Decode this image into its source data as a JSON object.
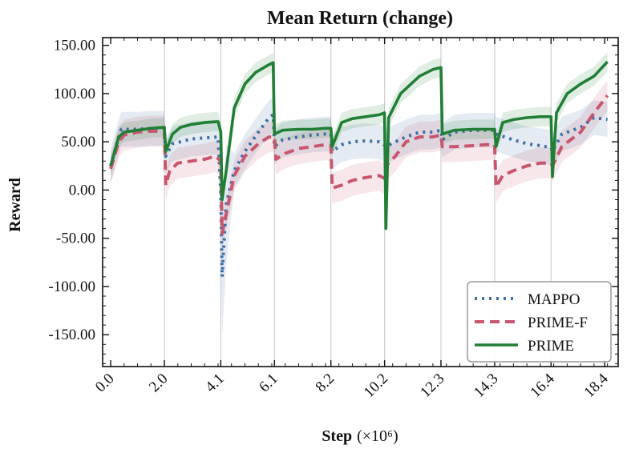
{
  "chart_data": {
    "type": "line",
    "title": "Mean Return (change)",
    "xlabel": "Step",
    "xlabel_suffix": "(×10⁶)",
    "ylabel": "Reward",
    "xlim": [
      -0.3,
      18.9
    ],
    "ylim": [
      -183,
      158
    ],
    "xticks": [
      0.0,
      2.0,
      4.1,
      6.1,
      8.2,
      10.2,
      12.3,
      14.3,
      16.4,
      18.4
    ],
    "xtick_labels": [
      "0.0",
      "2.0",
      "4.1",
      "6.1",
      "8.2",
      "10.2",
      "12.3",
      "14.3",
      "16.4",
      "18.4"
    ],
    "yticks": [
      150,
      100,
      50,
      0,
      -50,
      -100,
      -150
    ],
    "ytick_labels": [
      "150.00",
      "100.00",
      "50.00",
      "0.00",
      "-50.00",
      "-100.00",
      "-150.00"
    ],
    "vlines": [
      2.0,
      4.1,
      6.1,
      8.2,
      10.2,
      12.3,
      14.3,
      16.4
    ],
    "legend_position": "bottom-right",
    "grid": false,
    "series": [
      {
        "name": "MAPPO",
        "color": "#3f6fa5",
        "style": "dotted",
        "band_width": 18,
        "points": [
          [
            0,
            25
          ],
          [
            0.3,
            55
          ],
          [
            0.4,
            63
          ],
          [
            1.0,
            63
          ],
          [
            1.5,
            64
          ],
          [
            2.0,
            64
          ],
          [
            2.05,
            35
          ],
          [
            2.3,
            48
          ],
          [
            2.6,
            50
          ],
          [
            3.0,
            53
          ],
          [
            3.5,
            54
          ],
          [
            4.0,
            55
          ],
          [
            4.1,
            -5
          ],
          [
            4.15,
            -90
          ],
          [
            4.3,
            -15
          ],
          [
            4.6,
            20
          ],
          [
            5.0,
            40
          ],
          [
            5.5,
            60
          ],
          [
            5.9,
            75
          ],
          [
            6.05,
            78
          ],
          [
            6.1,
            45
          ],
          [
            6.4,
            52
          ],
          [
            7.0,
            55
          ],
          [
            7.5,
            57
          ],
          [
            8.0,
            58
          ],
          [
            8.2,
            58
          ],
          [
            8.25,
            40
          ],
          [
            8.6,
            47
          ],
          [
            9.0,
            50
          ],
          [
            9.5,
            51
          ],
          [
            10.0,
            50
          ],
          [
            10.15,
            48
          ],
          [
            10.25,
            45
          ],
          [
            10.6,
            50
          ],
          [
            11.0,
            55
          ],
          [
            11.5,
            60
          ],
          [
            12.0,
            60
          ],
          [
            12.3,
            62
          ],
          [
            12.35,
            52
          ],
          [
            12.8,
            60
          ],
          [
            13.5,
            62
          ],
          [
            14.0,
            62
          ],
          [
            14.3,
            62
          ],
          [
            14.35,
            58
          ],
          [
            15.0,
            52
          ],
          [
            15.5,
            48
          ],
          [
            16.0,
            46
          ],
          [
            16.4,
            44
          ],
          [
            16.45,
            40
          ],
          [
            16.8,
            58
          ],
          [
            17.5,
            65
          ],
          [
            18.0,
            75
          ],
          [
            18.5,
            73
          ]
        ]
      },
      {
        "name": "PRIME-F",
        "color": "#c8566e",
        "style": "dashed",
        "band_width": 16,
        "points": [
          [
            0,
            22
          ],
          [
            0.3,
            50
          ],
          [
            0.5,
            57
          ],
          [
            1.0,
            60
          ],
          [
            1.5,
            61
          ],
          [
            2.0,
            61
          ],
          [
            2.05,
            5
          ],
          [
            2.2,
            20
          ],
          [
            2.5,
            28
          ],
          [
            3.0,
            30
          ],
          [
            3.5,
            32
          ],
          [
            3.9,
            35
          ],
          [
            4.1,
            30
          ],
          [
            4.15,
            -45
          ],
          [
            4.3,
            -25
          ],
          [
            4.6,
            15
          ],
          [
            5.0,
            35
          ],
          [
            5.5,
            48
          ],
          [
            5.9,
            55
          ],
          [
            6.1,
            55
          ],
          [
            6.15,
            32
          ],
          [
            6.5,
            38
          ],
          [
            7.0,
            43
          ],
          [
            7.5,
            45
          ],
          [
            8.0,
            47
          ],
          [
            8.2,
            46
          ],
          [
            8.25,
            2
          ],
          [
            8.6,
            5
          ],
          [
            9.0,
            10
          ],
          [
            9.5,
            13
          ],
          [
            10.0,
            15
          ],
          [
            10.2,
            12
          ],
          [
            10.25,
            25
          ],
          [
            10.6,
            35
          ],
          [
            11.0,
            50
          ],
          [
            11.5,
            55
          ],
          [
            12.0,
            55
          ],
          [
            12.3,
            57
          ],
          [
            12.35,
            45
          ],
          [
            12.8,
            45
          ],
          [
            13.5,
            46
          ],
          [
            14.0,
            47
          ],
          [
            14.3,
            47
          ],
          [
            14.35,
            3
          ],
          [
            14.6,
            15
          ],
          [
            15.0,
            20
          ],
          [
            15.5,
            25
          ],
          [
            16.0,
            28
          ],
          [
            16.4,
            28
          ],
          [
            16.45,
            25
          ],
          [
            16.8,
            45
          ],
          [
            17.5,
            60
          ],
          [
            18.0,
            80
          ],
          [
            18.5,
            98
          ]
        ]
      },
      {
        "name": "PRIME",
        "color": "#217f35",
        "style": "solid",
        "band_width": 10,
        "points": [
          [
            0,
            25
          ],
          [
            0.3,
            55
          ],
          [
            0.5,
            60
          ],
          [
            1.0,
            62
          ],
          [
            1.5,
            64
          ],
          [
            2.0,
            65
          ],
          [
            2.05,
            40
          ],
          [
            2.3,
            58
          ],
          [
            2.6,
            65
          ],
          [
            3.0,
            68
          ],
          [
            3.5,
            70
          ],
          [
            4.0,
            71
          ],
          [
            4.1,
            60
          ],
          [
            4.15,
            -10
          ],
          [
            4.3,
            20
          ],
          [
            4.6,
            85
          ],
          [
            5.0,
            110
          ],
          [
            5.4,
            122
          ],
          [
            5.9,
            130
          ],
          [
            6.05,
            132
          ],
          [
            6.1,
            58
          ],
          [
            6.4,
            62
          ],
          [
            7.0,
            63
          ],
          [
            7.5,
            63
          ],
          [
            8.0,
            64
          ],
          [
            8.2,
            64
          ],
          [
            8.25,
            45
          ],
          [
            8.6,
            70
          ],
          [
            9.0,
            74
          ],
          [
            9.5,
            76
          ],
          [
            10.0,
            78
          ],
          [
            10.2,
            80
          ],
          [
            10.25,
            -40
          ],
          [
            10.35,
            75
          ],
          [
            10.8,
            100
          ],
          [
            11.5,
            118
          ],
          [
            12.0,
            125
          ],
          [
            12.3,
            127
          ],
          [
            12.35,
            58
          ],
          [
            12.8,
            62
          ],
          [
            13.5,
            63
          ],
          [
            14.0,
            63
          ],
          [
            14.3,
            63
          ],
          [
            14.35,
            45
          ],
          [
            14.6,
            70
          ],
          [
            15.0,
            73
          ],
          [
            15.5,
            75
          ],
          [
            16.0,
            76
          ],
          [
            16.4,
            76
          ],
          [
            16.45,
            14
          ],
          [
            16.6,
            80
          ],
          [
            17.0,
            100
          ],
          [
            17.5,
            110
          ],
          [
            18.0,
            118
          ],
          [
            18.5,
            133
          ]
        ]
      }
    ]
  }
}
